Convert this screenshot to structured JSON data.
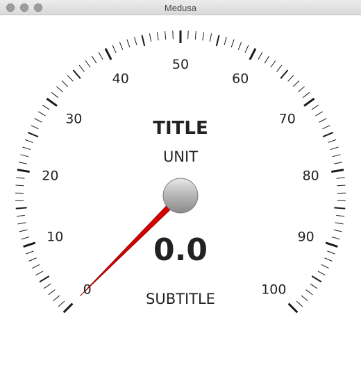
{
  "window": {
    "title": "Medusa",
    "buttons": [
      "close",
      "minimize",
      "zoom"
    ]
  },
  "gauge": {
    "title": "TITLE",
    "unit": "UNIT",
    "subtitle": "SUBTITLE",
    "value_text": "0.0",
    "value": 0.0,
    "min": 0,
    "max": 100,
    "major_tick_labels": [
      "0",
      "10",
      "20",
      "30",
      "40",
      "50",
      "60",
      "70",
      "80",
      "90",
      "100"
    ],
    "needle_color": "#d40000",
    "tick_color": "#1a1a1a",
    "knob_color": "#a8a8a8"
  }
}
